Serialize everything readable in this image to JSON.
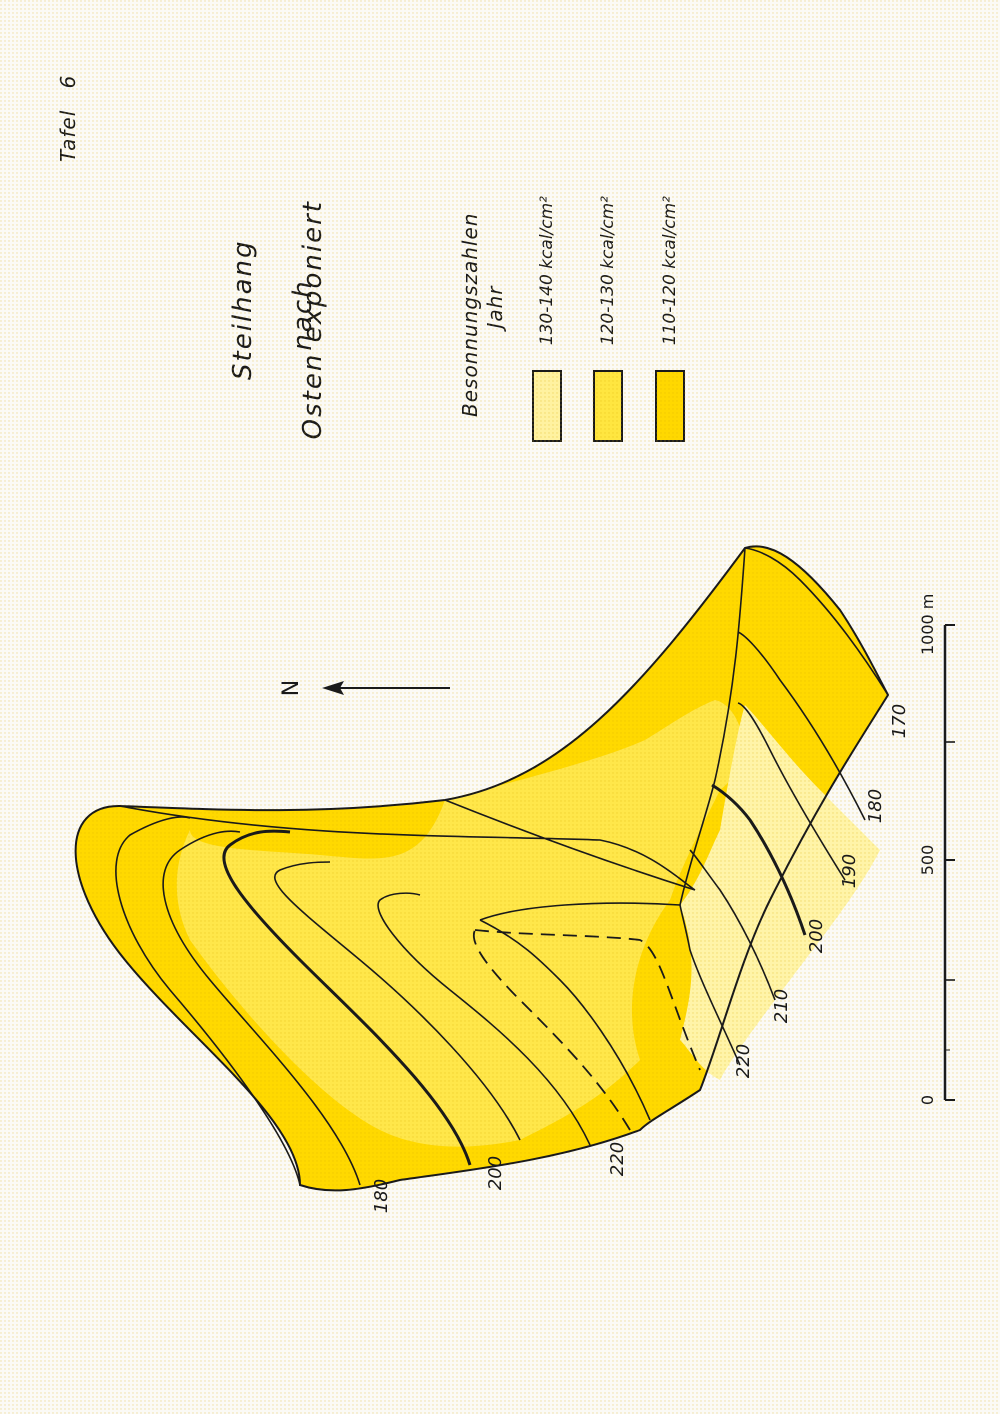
{
  "plate": {
    "label": "Tafel",
    "number": "6"
  },
  "title": {
    "line1": "Steilhang",
    "line2": "nach",
    "line3": "Osten exponiert"
  },
  "legend": {
    "heading1": "Besonnungszahlen",
    "heading2": "Jahr",
    "items": [
      {
        "label": "130-140 kcal/cm²",
        "color": "#fff2a0"
      },
      {
        "label": "120-130 kcal/cm²",
        "color": "#ffe640"
      },
      {
        "label": "110-120 kcal/cm²",
        "color": "#ffd800"
      }
    ]
  },
  "north": {
    "label": "N"
  },
  "scale": {
    "ticks": [
      "0",
      "500",
      "1000 m"
    ]
  },
  "contours": {
    "west": [
      "180",
      "200",
      "220"
    ],
    "east": [
      "220",
      "210",
      "200",
      "190",
      "180",
      "170"
    ]
  },
  "colors": {
    "ink": "#1a1a1a",
    "paper": "#fbfaf6"
  }
}
